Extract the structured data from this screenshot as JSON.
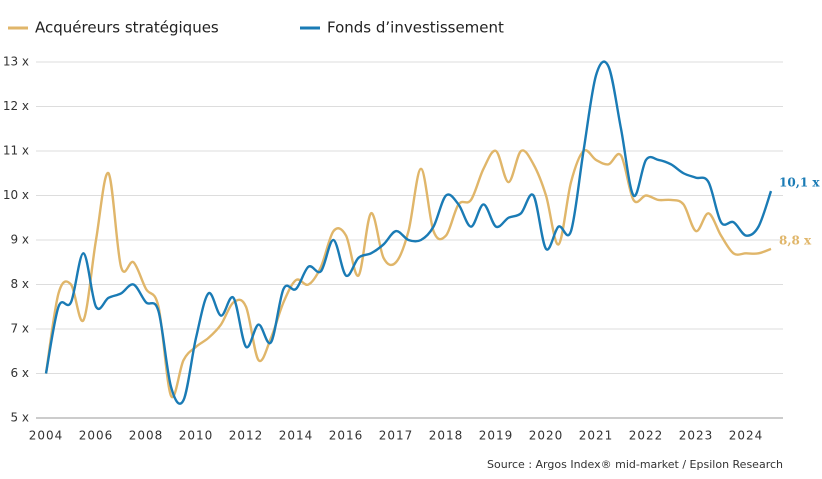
{
  "chart_data": {
    "type": "line",
    "categories": [
      "2004",
      null,
      null,
      null,
      "2006",
      null,
      null,
      null,
      "2008",
      null,
      null,
      null,
      "2010",
      null,
      null,
      null,
      "2012",
      null,
      null,
      null,
      "2014",
      null,
      null,
      null,
      "2016",
      null,
      null,
      null,
      "2017",
      null,
      null,
      null,
      "2018",
      null,
      null,
      null,
      "2019",
      null,
      null,
      null,
      "2020",
      null,
      null,
      null,
      "2021",
      null,
      null,
      null,
      "2022",
      null,
      null,
      null,
      "2023",
      null,
      null,
      null,
      "2024",
      null,
      null
    ],
    "series": [
      {
        "name": "Acquéreurs stratégiques",
        "color": "#e0b66a",
        "values": [
          6.0,
          7.8,
          8.0,
          7.2,
          9.0,
          10.5,
          8.4,
          8.5,
          7.9,
          7.5,
          5.5,
          6.3,
          6.6,
          6.8,
          7.1,
          7.6,
          7.5,
          6.3,
          6.8,
          7.6,
          8.1,
          8.0,
          8.4,
          9.2,
          9.1,
          8.2,
          9.6,
          8.6,
          8.5,
          9.2,
          10.6,
          9.2,
          9.1,
          9.8,
          9.9,
          10.6,
          11.0,
          10.3,
          11.0,
          10.7,
          10.0,
          8.9,
          10.3,
          11.0,
          10.8,
          10.7,
          10.9,
          9.9,
          10.0,
          9.9,
          9.9,
          9.8,
          9.2,
          9.6,
          9.1,
          8.7,
          8.7,
          8.7,
          8.8
        ],
        "value_labels": [
          null,
          null,
          null,
          null,
          null,
          null,
          null,
          null,
          null,
          null,
          null,
          null,
          null,
          null,
          null,
          null,
          null,
          null,
          null,
          null,
          null,
          null,
          null,
          null,
          null,
          null,
          null,
          null,
          null,
          null,
          null,
          null,
          null,
          null,
          null,
          null,
          null,
          null,
          null,
          null,
          null,
          null,
          null,
          null,
          null,
          null,
          null,
          null,
          null,
          null,
          null,
          null,
          null,
          null,
          null,
          null,
          null,
          null,
          "8,8 x"
        ]
      },
      {
        "name": "Fonds d’investissement",
        "color": "#1a7bb5",
        "values": [
          6.0,
          7.5,
          7.6,
          8.7,
          7.5,
          7.7,
          7.8,
          8.0,
          7.6,
          7.4,
          5.7,
          5.4,
          6.8,
          7.8,
          7.3,
          7.7,
          6.6,
          7.1,
          6.7,
          7.9,
          7.9,
          8.4,
          8.3,
          9.0,
          8.2,
          8.6,
          8.7,
          8.9,
          9.2,
          9.0,
          9.0,
          9.3,
          10.0,
          9.8,
          9.3,
          9.8,
          9.3,
          9.5,
          9.6,
          10.0,
          8.8,
          9.3,
          9.2,
          11.0,
          12.7,
          12.9,
          11.5,
          10.0,
          10.8,
          10.8,
          10.7,
          10.5,
          10.4,
          10.3,
          9.4,
          9.4,
          9.1,
          9.3,
          10.1
        ],
        "value_labels": [
          null,
          null,
          null,
          null,
          null,
          null,
          null,
          null,
          null,
          null,
          null,
          null,
          null,
          null,
          null,
          null,
          null,
          null,
          null,
          null,
          null,
          null,
          null,
          null,
          null,
          null,
          null,
          null,
          null,
          null,
          null,
          null,
          null,
          null,
          null,
          null,
          null,
          null,
          null,
          null,
          null,
          null,
          null,
          null,
          null,
          null,
          null,
          null,
          null,
          null,
          null,
          null,
          null,
          null,
          null,
          null,
          null,
          null,
          "10,1 x"
        ]
      }
    ],
    "ylim": [
      5,
      13
    ],
    "yticks": [
      {
        "value": 5,
        "label": "5 x"
      },
      {
        "value": 6,
        "label": "6 x"
      },
      {
        "value": 7,
        "label": "7 x"
      },
      {
        "value": 8,
        "label": "8 x"
      },
      {
        "value": 9,
        "label": "9 x"
      },
      {
        "value": 10,
        "label": "10 x"
      },
      {
        "value": 11,
        "label": "11 x"
      },
      {
        "value": 12,
        "label": "12 x"
      },
      {
        "value": 13,
        "label": "13 x"
      }
    ],
    "grid": true,
    "legend": "top",
    "source": "Source : Argos Index® mid-market / Epsilon Research"
  }
}
